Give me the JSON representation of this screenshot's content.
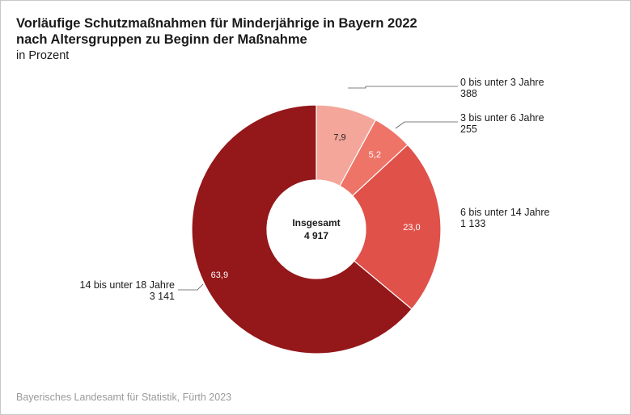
{
  "title_line1": "Vorläufige Schutzmaßnahmen für Minderjährige in Bayern 2022",
  "title_line2": "nach Altersgruppen zu Beginn der Maßnahme",
  "subtitle": "in Prozent",
  "source": "Bayerisches Landesamt für Statistik, Fürth 2023",
  "chart_data": {
    "type": "pie",
    "donut": true,
    "unit": "Prozent",
    "center_label": "Insgesamt",
    "center_value": "4 917",
    "categories": [
      "0 bis unter 3 Jahre",
      "3 bis unter 6 Jahre",
      "6 bis unter 14 Jahre",
      "14 bis unter 18 Jahre"
    ],
    "values": [
      7.9,
      5.2,
      23.0,
      63.9
    ],
    "value_labels": [
      "7,9",
      "5,2",
      "23,0",
      "63,9"
    ],
    "counts": [
      "388",
      "255",
      "1 133",
      "3 141"
    ],
    "colors": [
      "#f4a69a",
      "#ee7468",
      "#e0514a",
      "#94171a"
    ],
    "legend": "none"
  }
}
